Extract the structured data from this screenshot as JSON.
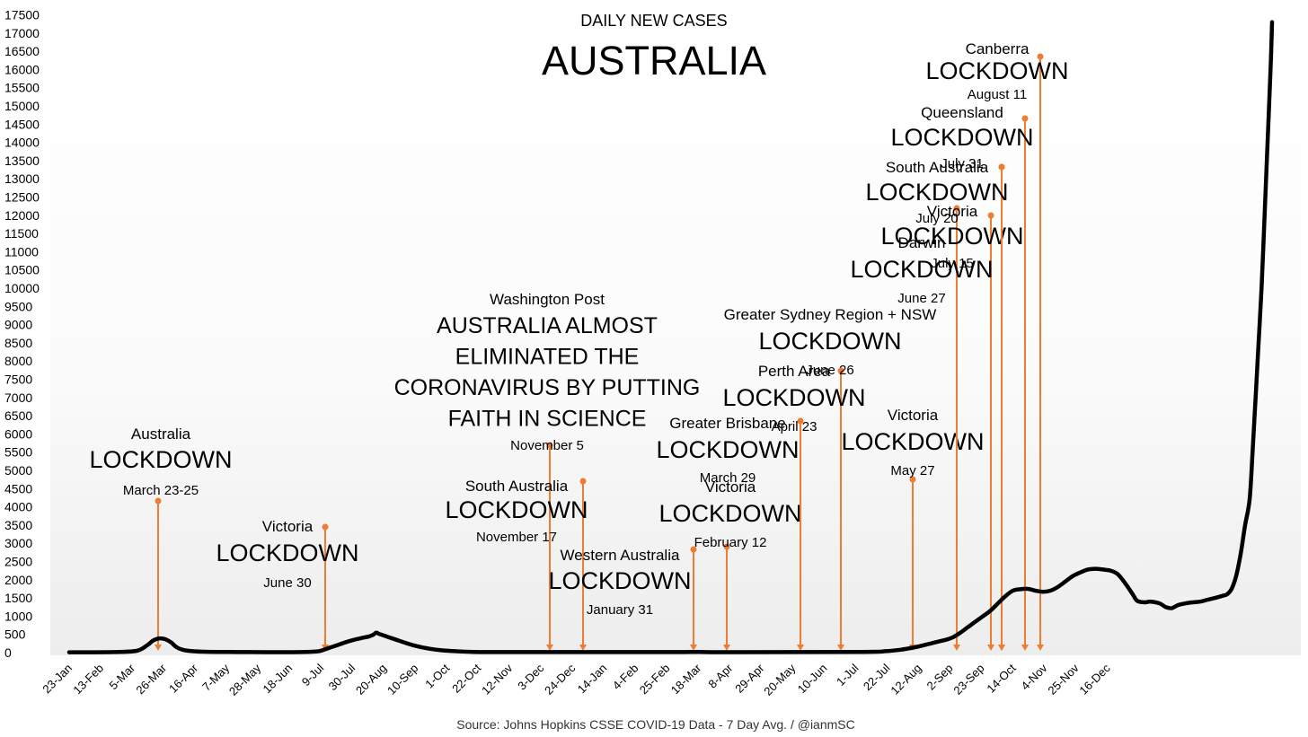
{
  "chart_data": {
    "type": "line",
    "subtitle": "DAILY NEW CASES",
    "title": "AUSTRALIA",
    "source": "Source: Johns Hopkins CSSE COVID-19 Data - 7 Day Avg. / @ianmSC",
    "xlabel": "",
    "ylabel": "",
    "ylim": [
      0,
      17500
    ],
    "y_ticks": [
      0,
      500,
      1000,
      1500,
      2000,
      2500,
      3000,
      3500,
      4000,
      4500,
      5000,
      5500,
      6000,
      6500,
      7000,
      7500,
      8000,
      8500,
      9000,
      9500,
      10000,
      10500,
      11000,
      11500,
      12000,
      12500,
      13000,
      13500,
      14000,
      14500,
      15000,
      15500,
      16000,
      16500,
      17000,
      17500
    ],
    "x_tick_labels": [
      "23-Jan",
      "13-Feb",
      "5-Mar",
      "26-Mar",
      "16-Apr",
      "7-May",
      "28-May",
      "18-Jun",
      "9-Jul",
      "30-Jul",
      "20-Aug",
      "10-Sep",
      "1-Oct",
      "22-Oct",
      "12-Nov",
      "3-Dec",
      "24-Dec",
      "14-Jan",
      "4-Feb",
      "25-Feb",
      "18-Mar",
      "8-Apr",
      "29-Apr",
      "20-May",
      "10-Jun",
      "1-Jul",
      "22-Jul",
      "12-Aug",
      "2-Sep",
      "23-Sep",
      "14-Oct",
      "4-Nov",
      "25-Nov",
      "16-Dec"
    ],
    "x_unit": "days since 23-Jan-2020, ticks every 21 days",
    "grid": false,
    "series": [
      {
        "name": "7 Day Avg.",
        "color": "#000000",
        "points": [
          [
            0,
            10
          ],
          [
            30,
            15
          ],
          [
            45,
            50
          ],
          [
            52,
            200
          ],
          [
            56,
            330
          ],
          [
            60,
            390
          ],
          [
            64,
            370
          ],
          [
            68,
            280
          ],
          [
            72,
            140
          ],
          [
            78,
            60
          ],
          [
            90,
            25
          ],
          [
            120,
            15
          ],
          [
            150,
            12
          ],
          [
            165,
            30
          ],
          [
            170,
            80
          ],
          [
            175,
            150
          ],
          [
            180,
            220
          ],
          [
            185,
            290
          ],
          [
            190,
            350
          ],
          [
            195,
            400
          ],
          [
            200,
            440
          ],
          [
            203,
            490
          ],
          [
            205,
            550
          ],
          [
            207,
            510
          ],
          [
            210,
            470
          ],
          [
            215,
            400
          ],
          [
            220,
            330
          ],
          [
            230,
            200
          ],
          [
            240,
            110
          ],
          [
            250,
            60
          ],
          [
            270,
            20
          ],
          [
            300,
            15
          ],
          [
            400,
            15
          ],
          [
            420,
            18
          ],
          [
            440,
            12
          ],
          [
            530,
            20
          ],
          [
            545,
            40
          ],
          [
            555,
            80
          ],
          [
            565,
            150
          ],
          [
            570,
            200
          ],
          [
            575,
            250
          ],
          [
            580,
            300
          ],
          [
            585,
            350
          ],
          [
            590,
            420
          ],
          [
            595,
            550
          ],
          [
            600,
            700
          ],
          [
            605,
            850
          ],
          [
            610,
            1000
          ],
          [
            615,
            1150
          ],
          [
            620,
            1350
          ],
          [
            625,
            1550
          ],
          [
            630,
            1700
          ],
          [
            635,
            1740
          ],
          [
            640,
            1750
          ],
          [
            645,
            1700
          ],
          [
            650,
            1670
          ],
          [
            655,
            1700
          ],
          [
            660,
            1800
          ],
          [
            665,
            1950
          ],
          [
            670,
            2100
          ],
          [
            675,
            2200
          ],
          [
            680,
            2280
          ],
          [
            685,
            2300
          ],
          [
            690,
            2280
          ],
          [
            695,
            2250
          ],
          [
            700,
            2150
          ],
          [
            705,
            1900
          ],
          [
            710,
            1600
          ],
          [
            713,
            1420
          ],
          [
            718,
            1380
          ],
          [
            722,
            1400
          ],
          [
            728,
            1350
          ],
          [
            732,
            1250
          ],
          [
            736,
            1220
          ],
          [
            740,
            1300
          ],
          [
            745,
            1350
          ],
          [
            750,
            1380
          ],
          [
            755,
            1400
          ],
          [
            760,
            1450
          ],
          [
            765,
            1500
          ],
          [
            770,
            1560
          ],
          [
            773,
            1600
          ],
          [
            776,
            1750
          ],
          [
            779,
            2100
          ],
          [
            782,
            2700
          ],
          [
            785,
            3500
          ],
          [
            788,
            4200
          ],
          [
            790,
            5500
          ],
          [
            792,
            7000
          ],
          [
            794,
            8500
          ],
          [
            796,
            10000
          ],
          [
            798,
            12000
          ],
          [
            800,
            14000
          ],
          [
            802,
            16000
          ],
          [
            803,
            17300
          ]
        ]
      }
    ],
    "annotations": [
      {
        "region": "Australia",
        "label": "LOCKDOWN",
        "date": "March 23-25"
      },
      {
        "region": "Victoria",
        "label": "LOCKDOWN",
        "date": "June 30"
      },
      {
        "region": "Washington Post",
        "headline": [
          "AUSTRALIA ALMOST",
          "ELIMINATED THE",
          "CORONAVIRUS BY PUTTING",
          "FAITH IN SCIENCE"
        ],
        "date": "November 5"
      },
      {
        "region": "South Australia",
        "label": "LOCKDOWN",
        "date": "November 17"
      },
      {
        "region": "Western Australia",
        "label": "LOCKDOWN",
        "date": "January 31"
      },
      {
        "region": "Victoria",
        "label": "LOCKDOWN",
        "date": "February 12"
      },
      {
        "region": "Greater Brisbane",
        "label": "LOCKDOWN",
        "date": "March 29"
      },
      {
        "region": "Perth Area",
        "label": "LOCKDOWN",
        "date": "April 23"
      },
      {
        "region": "Victoria",
        "label": "LOCKDOWN",
        "date": "May 27"
      },
      {
        "region": "Greater Sydney Region + NSW",
        "label": "LOCKDOWN",
        "date": "June 26"
      },
      {
        "region": "Darwin",
        "label": "LOCKDOWN",
        "date": "June 27"
      },
      {
        "region": "Victoria",
        "label": "LOCKDOWN",
        "date": "July 15"
      },
      {
        "region": "South Australia",
        "label": "LOCKDOWN",
        "date": "July 20"
      },
      {
        "region": "Queensland",
        "label": "LOCKDOWN",
        "date": "July 31"
      },
      {
        "region": "Canberra",
        "label": "LOCKDOWN",
        "date": "August 11"
      }
    ],
    "annotation_color": "#ed7d31"
  }
}
